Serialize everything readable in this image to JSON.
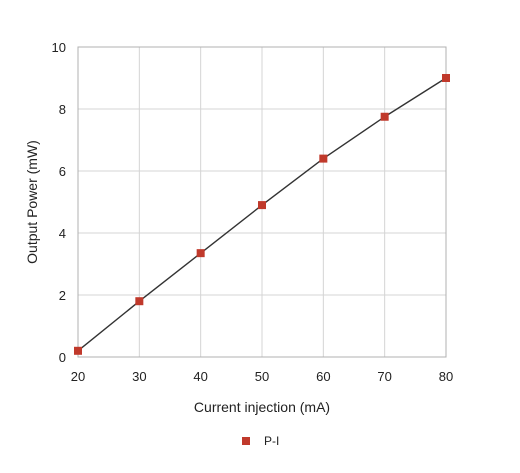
{
  "chart_data": {
    "type": "scatter",
    "title": "",
    "xlabel": "Current injection (mA)",
    "ylabel": "Output Power (mW)",
    "xlim": [
      20,
      80
    ],
    "ylim": [
      0,
      10
    ],
    "xticks": [
      "20",
      "30",
      "40",
      "50",
      "60",
      "70",
      "80"
    ],
    "yticks": [
      "0",
      "2",
      "4",
      "6",
      "8",
      "10"
    ],
    "grid": true,
    "legend_position": "bottom",
    "series": [
      {
        "name": "P-I",
        "color": "#c0392b",
        "marker": "square",
        "trendline": true,
        "trendline_color": "#333333",
        "x": [
          20,
          30,
          40,
          50,
          60,
          70,
          80
        ],
        "y": [
          0.2,
          1.8,
          3.35,
          4.9,
          6.4,
          7.75,
          9.0
        ]
      }
    ]
  }
}
